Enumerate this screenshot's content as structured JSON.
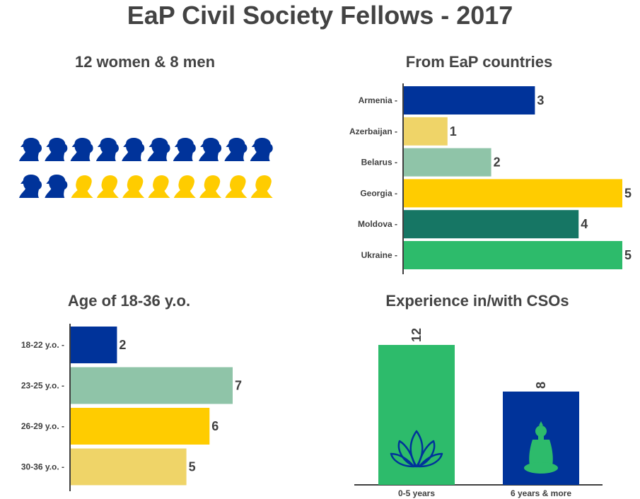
{
  "title": "EaP Civil Society Fellows - 2017",
  "chart_data": [
    {
      "type": "pictogram",
      "title": "12 women & 8 men",
      "categories": [
        "women",
        "men"
      ],
      "values": [
        12,
        8
      ],
      "colors": [
        "#00339a",
        "#ffcc00"
      ]
    },
    {
      "type": "bar",
      "orientation": "horizontal",
      "title": "From EaP countries",
      "categories": [
        "Armenia",
        "Azerbaijan",
        "Belarus",
        "Georgia",
        "Moldova",
        "Ukraine"
      ],
      "values": [
        3,
        1,
        2,
        5,
        4,
        5
      ],
      "colors": [
        "#00339a",
        "#efd468",
        "#8fc4a8",
        "#ffcc00",
        "#167664",
        "#2dbb6b"
      ],
      "xlim": [
        0,
        5
      ]
    },
    {
      "type": "bar",
      "orientation": "horizontal",
      "title": "Age of 18-36 y.o.",
      "categories": [
        "18-22 y.o.",
        "23-25 y.o.",
        "26-29 y.o.",
        "30-36 y.o."
      ],
      "values": [
        2,
        7,
        6,
        5
      ],
      "colors": [
        "#00339a",
        "#8fc4a8",
        "#ffcc00",
        "#efd468"
      ],
      "xlim": [
        0,
        7
      ]
    },
    {
      "type": "bar",
      "orientation": "vertical",
      "title": "Experience in/with CSOs",
      "categories": [
        "0-5 years",
        "6 years & more"
      ],
      "values": [
        12,
        8
      ],
      "colors": [
        "#2dbb6b",
        "#00339a"
      ],
      "icons": [
        "lotus-icon",
        "buddha-icon"
      ],
      "ylim": [
        0,
        12
      ]
    }
  ]
}
